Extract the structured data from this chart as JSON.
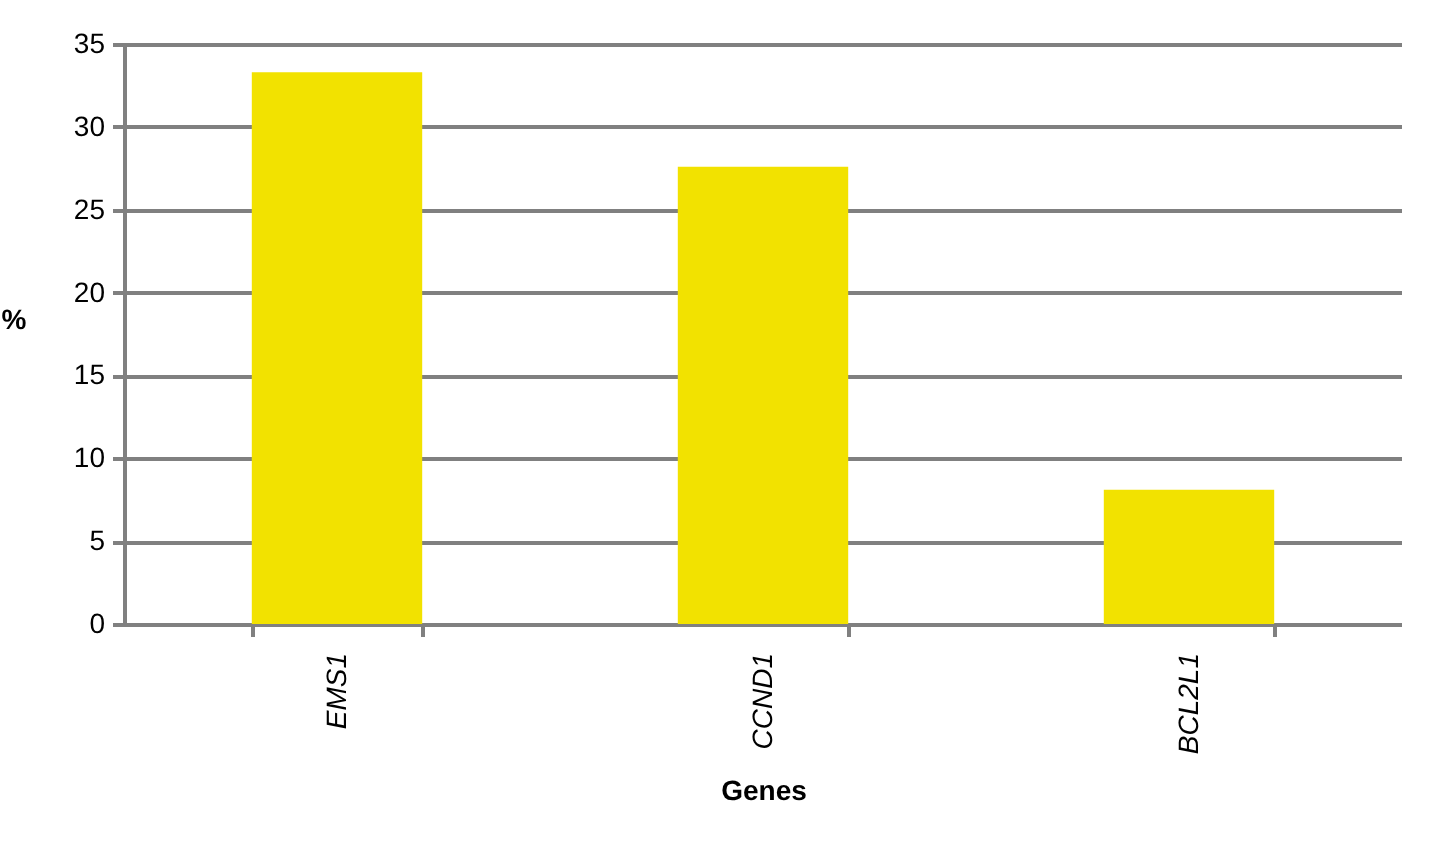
{
  "chart_data": {
    "type": "bar",
    "xlabel": "Genes",
    "ylabel": "%",
    "categories": [
      "EMS1",
      "CCND1",
      "BCL2L1"
    ],
    "values": [
      33.3,
      27.6,
      8.1
    ],
    "color": "#f2e200",
    "ylim": [
      0,
      35
    ],
    "yticks": [
      0,
      5,
      10,
      15,
      20,
      25,
      30,
      35
    ],
    "grid": "y"
  }
}
